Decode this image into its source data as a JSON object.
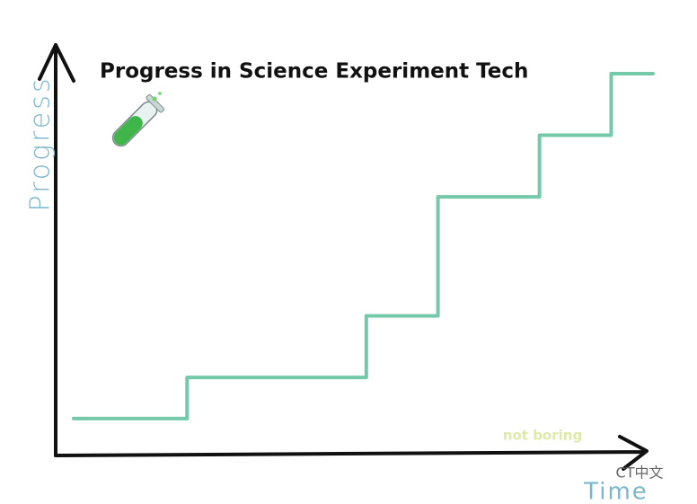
{
  "chart_data": {
    "type": "line",
    "title": "Progress in Science Experiment Tech",
    "x_label": "Time",
    "y_label": "Progress",
    "x": [
      3,
      22,
      22,
      52,
      52,
      64,
      64,
      81,
      81,
      93,
      93,
      100
    ],
    "series": [
      {
        "name": "Progress",
        "color": "#74c9aa",
        "values": [
          9,
          9,
          19,
          19,
          34,
          34,
          63,
          63,
          78,
          78,
          93,
          93
        ]
      }
    ],
    "xlim": [
      0,
      100
    ],
    "ylim": [
      0,
      100
    ],
    "annotations": [
      "not boring",
      "CT中文"
    ]
  }
}
